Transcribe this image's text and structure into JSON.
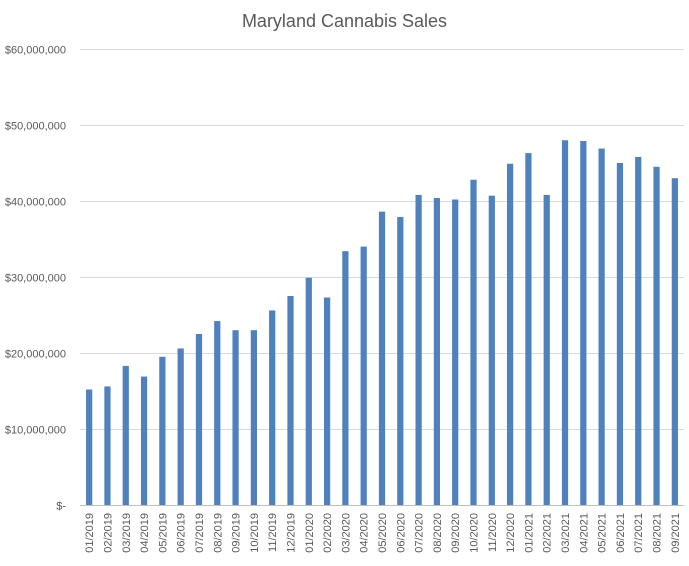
{
  "chart_data": {
    "type": "bar",
    "title": "Maryland Cannabis Sales",
    "xlabel": "",
    "ylabel": "",
    "ylim": [
      0,
      60000000
    ],
    "yticks": [
      {
        "value": 0,
        "label": "$-"
      },
      {
        "value": 10000000,
        "label": "$10,000,000"
      },
      {
        "value": 20000000,
        "label": "$20,000,000"
      },
      {
        "value": 30000000,
        "label": "$30,000,000"
      },
      {
        "value": 40000000,
        "label": "$40,000,000"
      },
      {
        "value": 50000000,
        "label": "$50,000,000"
      },
      {
        "value": 60000000,
        "label": "$60,000,000"
      }
    ],
    "grid": true,
    "legend": "none",
    "bar_color": "#4f81bd",
    "categories": [
      "01/2019",
      "02/2019",
      "03/2019",
      "04/2019",
      "05/2019",
      "06/2019",
      "07/2019",
      "08/2019",
      "09/2019",
      "10/2019",
      "11/2019",
      "12/2019",
      "01/2020",
      "02/2020",
      "03/2020",
      "04/2020",
      "05/2020",
      "06/2020",
      "07/2020",
      "08/2020",
      "09/2020",
      "10/2020",
      "11/2020",
      "12/2020",
      "01/2021",
      "02/2021",
      "03/2021",
      "04/2021",
      "05/2021",
      "06/2021",
      "07/2021",
      "08/2021",
      "09/2021"
    ],
    "values": [
      15200000,
      15600000,
      18300000,
      16900000,
      19500000,
      20600000,
      22500000,
      24200000,
      23000000,
      23000000,
      25600000,
      27500000,
      29900000,
      27300000,
      33400000,
      34000000,
      38600000,
      37900000,
      40800000,
      40400000,
      40200000,
      42800000,
      40700000,
      44900000,
      46300000,
      40800000,
      48000000,
      47900000,
      46900000,
      45000000,
      45800000,
      44500000,
      43000000
    ]
  }
}
